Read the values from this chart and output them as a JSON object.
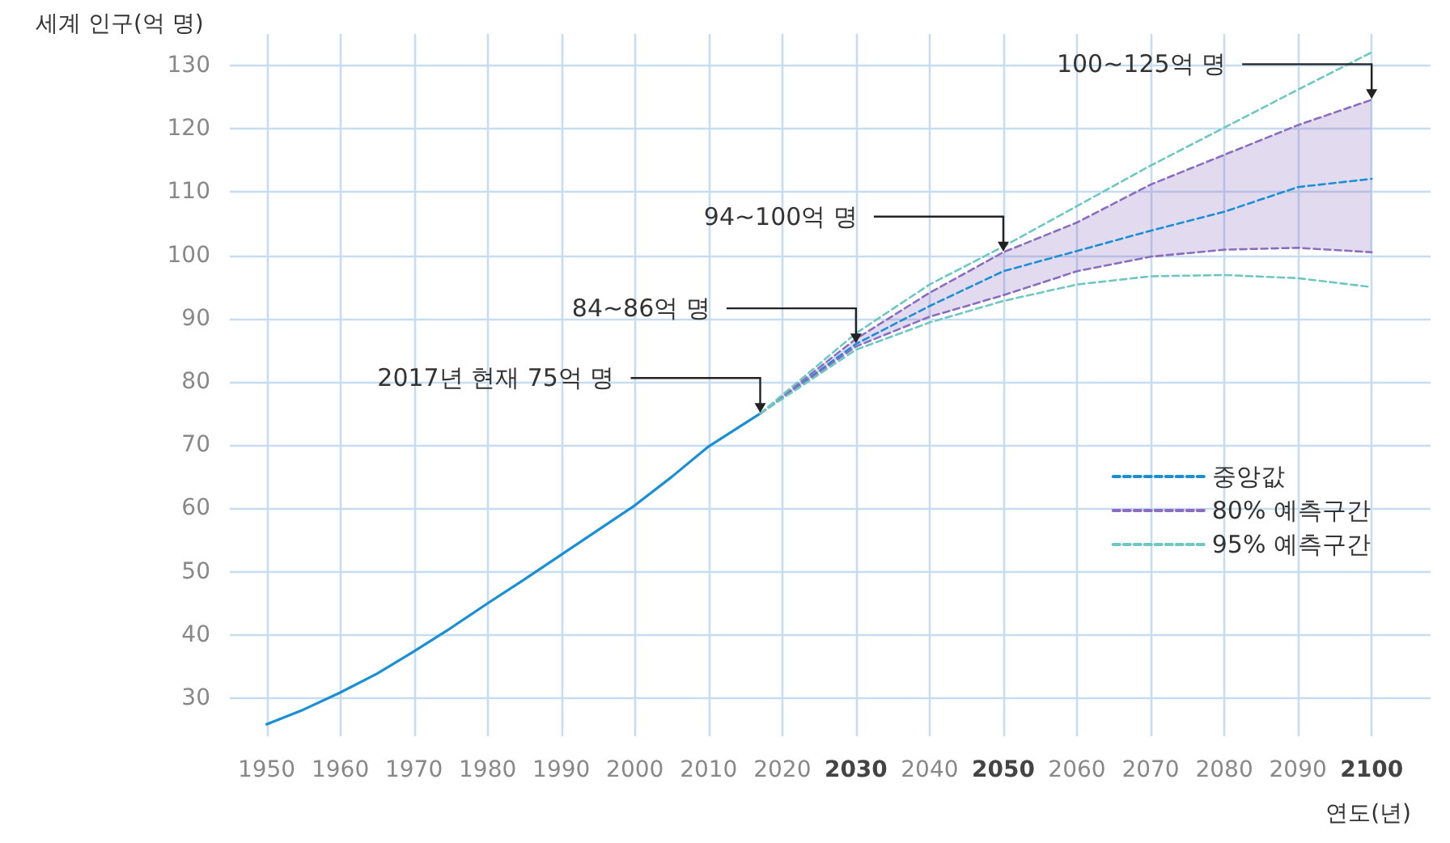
{
  "chart_data": {
    "type": "line",
    "ylabel": "세계 인구(억 명)",
    "xlabel": "연도(년)",
    "xlim": [
      1945,
      2108
    ],
    "ylim": [
      24,
      135
    ],
    "xticks": [
      1950,
      1960,
      1970,
      1980,
      1990,
      2000,
      2010,
      2020,
      2030,
      2040,
      2050,
      2060,
      2070,
      2080,
      2090,
      2100
    ],
    "yticks": [
      30,
      40,
      50,
      60,
      70,
      80,
      90,
      100,
      110,
      120,
      130
    ],
    "grid": true,
    "legend": "right",
    "marker": "none",
    "series": [
      {
        "color": "#1a8fd6",
        "line_style": "solid",
        "x": [
          1950,
          1955,
          1960,
          1965,
          1970,
          1975,
          1980,
          1985,
          1990,
          1995,
          2000,
          2005,
          2010,
          2017
        ],
        "values": [
          25.9,
          28.2,
          30.9,
          33.9,
          37.4,
          41.1,
          45.0,
          48.8,
          52.7,
          56.6,
          60.5,
          65.0,
          69.8,
          75
        ]
      },
      {
        "name": "중앙값",
        "color": "#1a8fd6",
        "line_style": "dashed",
        "x": [
          2017,
          2030,
          2040,
          2050,
          2060,
          2070,
          2080,
          2090,
          2100
        ],
        "values": [
          75,
          86.0,
          92.0,
          97.5,
          100.7,
          103.9,
          106.9,
          110.8,
          112.1
        ],
        "lower": [
          75,
          85.6,
          90.3,
          93.7,
          97.5,
          99.8,
          100.9,
          101.2,
          100.5
        ],
        "upper": [
          75,
          86.8,
          94.1,
          100.5,
          105.2,
          111.2,
          115.9,
          120.6,
          124.6
        ]
      },
      {
        "name": "80% 예측구간",
        "color": "#8a6cc0",
        "line_style": "dashed",
        "x": [
          2017,
          2030,
          2040,
          2050,
          2060,
          2070,
          2080,
          2090,
          2100
        ],
        "values": [
          75,
          86.8,
          94.1,
          100.5,
          105.2,
          111.2,
          115.9,
          120.6,
          124.6
        ]
      },
      {
        "color": "#8a6cc0",
        "line_style": "dashed",
        "x": [
          2017,
          2030,
          2040,
          2050,
          2060,
          2070,
          2080,
          2090,
          2100
        ],
        "values": [
          75,
          85.6,
          90.3,
          93.7,
          97.5,
          99.8,
          100.9,
          101.2,
          100.5
        ]
      },
      {
        "name": "95% 예측구간",
        "color": "#6cc8c0",
        "line_style": "dashed",
        "x": [
          2017,
          2030,
          2040,
          2050,
          2060,
          2070,
          2080,
          2090,
          2100
        ],
        "values": [
          75,
          87.7,
          95.4,
          101.4,
          107.8,
          114.2,
          120.2,
          126.2,
          132.1
        ]
      },
      {
        "color": "#6cc8c0",
        "line_style": "dashed",
        "x": [
          2017,
          2030,
          2040,
          2050,
          2060,
          2070,
          2080,
          2090,
          2100
        ],
        "values": [
          75,
          85.1,
          89.4,
          92.8,
          95.4,
          96.7,
          96.9,
          96.4,
          95.0
        ]
      }
    ],
    "annotations": [
      {
        "text": "2017년 현재 75억 명",
        "x": 2017,
        "y": 75
      },
      {
        "text": "84~86억 명",
        "x": 2030,
        "y": 86
      },
      {
        "text": "94~100억 명",
        "x": 2050,
        "y": 100.5
      },
      {
        "text": "100~125억 명",
        "x": 2100,
        "y": 124.6
      }
    ]
  }
}
